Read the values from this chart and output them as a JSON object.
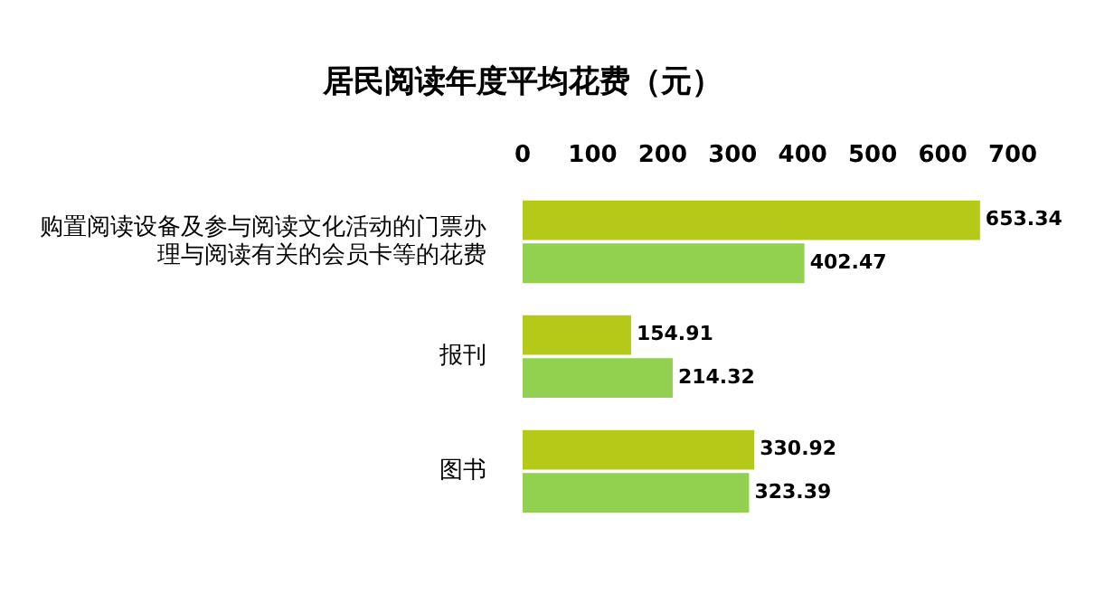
{
  "chart_data": {
    "type": "bar",
    "orientation": "horizontal",
    "title": "居民阅读年度平均花费（元）",
    "categories": [
      "购置阅读设备及参与阅读文化活动的门票办理与阅读有关的会员卡等的花费",
      "报刊",
      "图书"
    ],
    "series": [
      {
        "color": "#b5c918",
        "values": [
          653.34,
          154.91,
          330.92
        ]
      },
      {
        "color": "#92d050",
        "values": [
          402.47,
          214.32,
          323.39
        ]
      }
    ],
    "xlim": [
      0,
      700
    ],
    "xticks": [
      0,
      100,
      200,
      300,
      400,
      500,
      600,
      700
    ],
    "grid": false,
    "legend": false,
    "data_labels": true
  }
}
